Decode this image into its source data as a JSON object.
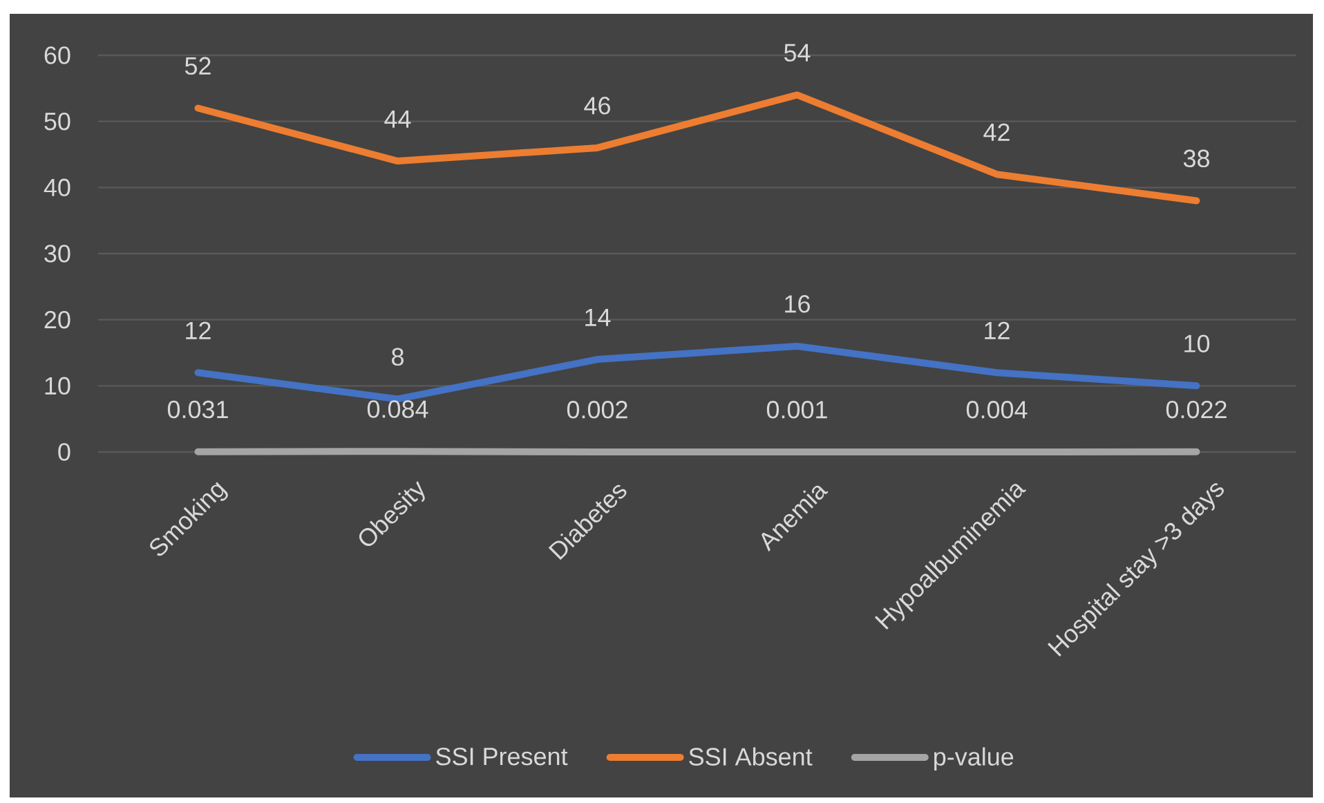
{
  "chart_data": {
    "type": "line",
    "categories": [
      "Smoking",
      "Obesity",
      "Diabetes",
      "Anemia",
      "Hypoalbuminemia",
      "Hospital stay >3 days"
    ],
    "series": [
      {
        "name": "SSI Present",
        "color": "#4472c4",
        "values": [
          12,
          8,
          14,
          16,
          12,
          10
        ]
      },
      {
        "name": "SSI Absent",
        "color": "#ed7d31",
        "values": [
          52,
          44,
          46,
          54,
          42,
          38
        ]
      },
      {
        "name": "p-value",
        "color": "#a5a5a5",
        "values": [
          0.031,
          0.084,
          0.002,
          0.001,
          0.004,
          0.022
        ]
      }
    ],
    "ylim": [
      0,
      60
    ],
    "yticks": [
      0,
      10,
      20,
      30,
      40,
      50,
      60
    ],
    "grid": "y",
    "legend": "bottom",
    "data_labels": true,
    "marker": "none"
  }
}
